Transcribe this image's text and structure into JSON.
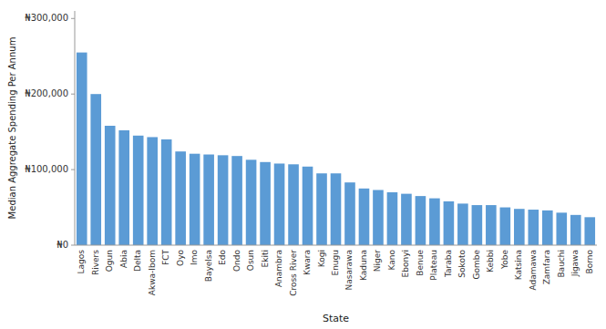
{
  "chart_data": {
    "type": "bar",
    "categories": [
      "Lagos",
      "Rivers",
      "Ogun",
      "Abia",
      "Delta",
      "Akwa-Ibom",
      "FCT",
      "Oyo",
      "Imo",
      "Bayelsa",
      "Edo",
      "Ondo",
      "Osun",
      "Ekiti",
      "Anambra",
      "Cross River",
      "Kwara",
      "Kogi",
      "Enugu",
      "Nasarawa",
      "Kaduna",
      "Niger",
      "Kano",
      "Ebonyi",
      "Benue",
      "Plateau",
      "Taraba",
      "Sokoto",
      "Gombe",
      "Kebbi",
      "Yobe",
      "Katsina",
      "Adamawa",
      "Zamfara",
      "Bauchi",
      "Jigawa",
      "Borno"
    ],
    "values": [
      255000,
      200000,
      158000,
      152000,
      145000,
      143000,
      140000,
      124000,
      121000,
      120000,
      119000,
      118000,
      113000,
      110000,
      108000,
      107000,
      104000,
      95000,
      95000,
      83000,
      75000,
      73000,
      70000,
      68000,
      65000,
      62000,
      58000,
      55000,
      53000,
      53000,
      50000,
      48000,
      47000,
      46000,
      43000,
      40000,
      37000
    ],
    "color": "#5B9BD5",
    "xlabel": "State",
    "ylabel": "Median Aggregate Spending Per Annum",
    "ylim": [
      0,
      310000
    ],
    "yticks": [
      {
        "value": 0,
        "label": "₦0"
      },
      {
        "value": 100000,
        "label": "₦100,000"
      },
      {
        "value": 200000,
        "label": "₦200,000"
      },
      {
        "value": 300000,
        "label": "₦300,000"
      }
    ],
    "grid": false
  }
}
